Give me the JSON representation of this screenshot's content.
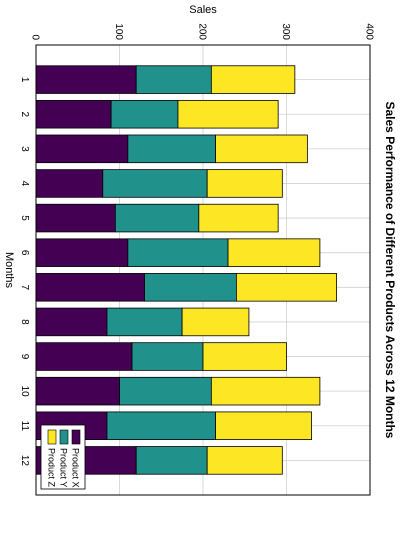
{
  "chart_data": {
    "type": "bar",
    "stacked": true,
    "title": "Sales Performance of Different Products Across 12 Months",
    "xlabel": "Months",
    "ylabel": "Sales",
    "categories": [
      "1",
      "2",
      "3",
      "4",
      "5",
      "6",
      "7",
      "8",
      "9",
      "10",
      "11",
      "12"
    ],
    "ylim": [
      0,
      400
    ],
    "yticks": [
      0,
      100,
      200,
      300,
      400
    ],
    "grid": true,
    "legend_position": "bottom-right",
    "series": [
      {
        "name": "Product X",
        "color": "#440154",
        "values": [
          120,
          90,
          110,
          80,
          95,
          110,
          130,
          85,
          115,
          100,
          85,
          120
        ]
      },
      {
        "name": "Product Y",
        "color": "#21918c",
        "values": [
          90,
          80,
          105,
          125,
          100,
          120,
          110,
          90,
          85,
          110,
          130,
          85
        ]
      },
      {
        "name": "Product Z",
        "color": "#fde725",
        "values": [
          100,
          120,
          110,
          90,
          95,
          110,
          120,
          80,
          100,
          130,
          115,
          90
        ]
      }
    ]
  }
}
